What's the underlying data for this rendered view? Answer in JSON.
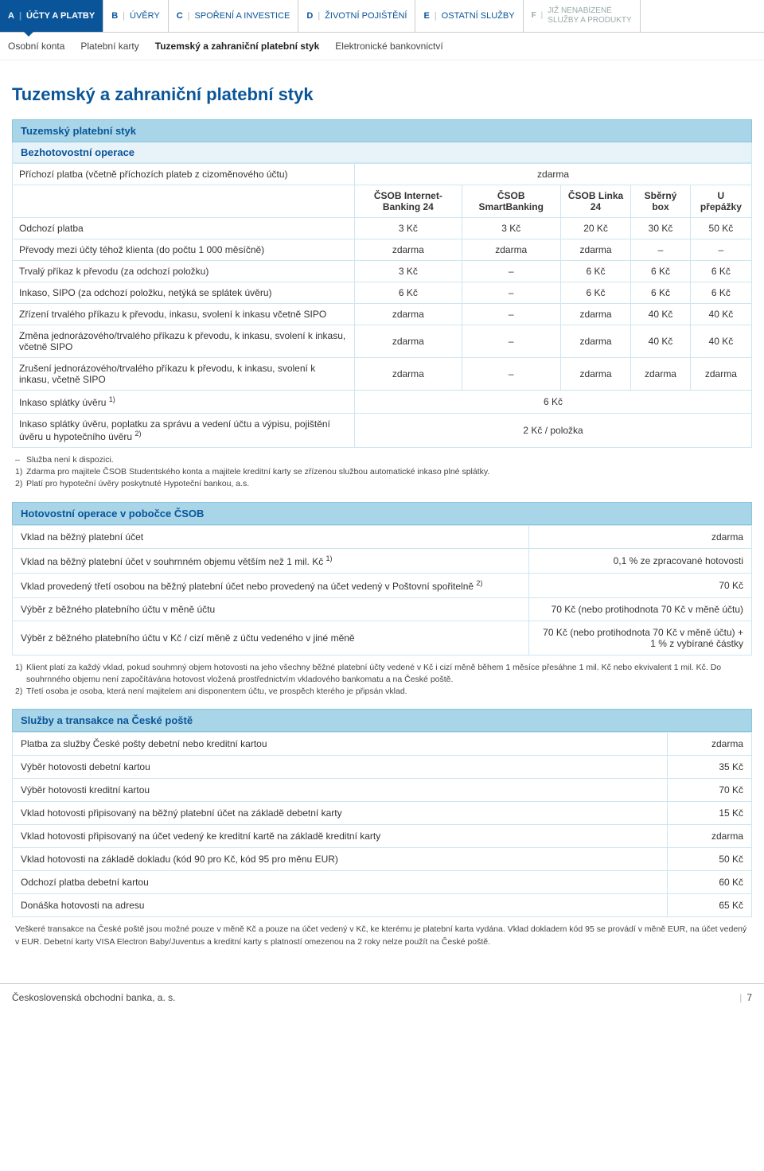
{
  "tabs": [
    {
      "letter": "A",
      "label": "ÚČTY A PLATBY",
      "active": true
    },
    {
      "letter": "B",
      "label": "ÚVĚRY"
    },
    {
      "letter": "C",
      "label": "SPOŘENÍ A INVESTICE"
    },
    {
      "letter": "D",
      "label": "ŽIVOTNÍ POJIŠTĚNÍ"
    },
    {
      "letter": "E",
      "label": "OSTATNÍ SLUŽBY"
    },
    {
      "letter": "F",
      "label": "JIŽ NENABÍZENÉ SLUŽBY A PRODUKTY",
      "last": true
    }
  ],
  "subtabs": [
    {
      "label": "Osobní konta"
    },
    {
      "label": "Platební karty"
    },
    {
      "label": "Tuzemský a zahraniční platební styk",
      "active": true
    },
    {
      "label": "Elektronické bankovnictví"
    }
  ],
  "page_title": "Tuzemský a zahraniční platební styk",
  "section1": {
    "header": "Tuzemský platební styk",
    "sub": "Bezhotovostní operace",
    "span_row": {
      "label": "Příchozí platba (včetně příchozích plateb z cizoměnového účtu)",
      "val": "zdarma"
    },
    "cols": [
      "",
      "ČSOB Internet-Banking 24",
      "ČSOB SmartBanking",
      "ČSOB Linka 24",
      "Sběrný box",
      "U přepážky"
    ],
    "rows": [
      [
        "Odchozí platba",
        "3 Kč",
        "3 Kč",
        "20 Kč",
        "30 Kč",
        "50 Kč"
      ],
      [
        "Převody mezi účty téhož klienta (do počtu 1 000 měsíčně)",
        "zdarma",
        "zdarma",
        "zdarma",
        "–",
        "–"
      ],
      [
        "Trvalý příkaz k převodu (za odchozí položku)",
        "3 Kč",
        "–",
        "6 Kč",
        "6 Kč",
        "6 Kč"
      ],
      [
        "Inkaso, SIPO (za odchozí položku, netýká se splátek úvěru)",
        "6 Kč",
        "–",
        "6 Kč",
        "6 Kč",
        "6 Kč"
      ],
      [
        "Zřízení trvalého příkazu k převodu, inkasu, svolení k inkasu včetně SIPO",
        "zdarma",
        "–",
        "zdarma",
        "40 Kč",
        "40 Kč"
      ],
      [
        "Změna jednorázového/trvalého příkazu k převodu, k inkasu, svolení k inkasu, včetně SIPO",
        "zdarma",
        "–",
        "zdarma",
        "40 Kč",
        "40 Kč"
      ],
      [
        "Zrušení jednorázového/trvalého příkazu k převodu, k inkasu, svolení k inkasu, včetně SIPO",
        "zdarma",
        "–",
        "zdarma",
        "zdarma",
        "zdarma"
      ]
    ],
    "tail": [
      {
        "label": "Inkaso splátky úvěru ",
        "sup": "1)",
        "val": "6 Kč"
      },
      {
        "label": "Inkaso splátky úvěru, poplatku za správu a vedení účtu a výpisu, pojištění úvěru u hypotečního úvěru ",
        "sup": "2)",
        "val": "2 Kč / položka"
      }
    ],
    "notes": [
      {
        "m": "–",
        "t": "Služba není k dispozici."
      },
      {
        "m": "1)",
        "t": "Zdarma pro majitele ČSOB Studentského konta a majitele kreditní karty se zřízenou službou automatické inkaso plné splátky."
      },
      {
        "m": "2)",
        "t": "Platí pro hypoteční úvěry poskytnuté Hypoteční bankou, a.s."
      }
    ]
  },
  "section2": {
    "header": "Hotovostní operace v pobočce ČSOB",
    "rows": [
      {
        "label": "Vklad na běžný platební účet",
        "val": "zdarma"
      },
      {
        "label": "Vklad na běžný platební účet v souhrnném objemu větším než 1 mil. Kč ",
        "sup": "1)",
        "val": "0,1 % ze zpracované hotovosti"
      },
      {
        "label": "Vklad provedený třetí osobou na běžný platební účet nebo provedený na účet vedený v Poštovní spořitelně ",
        "sup": "2)",
        "val": "70 Kč"
      },
      {
        "label": "Výběr z běžného platebního účtu v měně účtu",
        "val": "70 Kč (nebo protihodnota 70 Kč v měně účtu)"
      },
      {
        "label": "Výběr z běžného platebního účtu v Kč / cizí měně z účtu vedeného v jiné měně",
        "val": "70 Kč (nebo protihodnota 70 Kč v měně účtu) + 1 % z vybírané částky"
      }
    ],
    "notes": [
      {
        "m": "1)",
        "t": "Klient platí za každý vklad, pokud souhrnný objem hotovosti na jeho všechny běžné platební účty vedené v Kč i cizí měně během 1 měsíce přesáhne 1 mil. Kč nebo ekvivalent 1 mil. Kč. Do souhrnného objemu není započítávána hotovost vložená prostřednictvím vkladového bankomatu a na České poště."
      },
      {
        "m": "2)",
        "t": "Třetí osoba je osoba, která není majitelem ani disponentem účtu, ve prospěch kterého je připsán vklad."
      }
    ]
  },
  "section3": {
    "header": "Služby a transakce na České poště",
    "rows": [
      {
        "label": "Platba za služby České pošty debetní nebo kreditní kartou",
        "val": "zdarma"
      },
      {
        "label": "Výběr hotovosti debetní kartou",
        "val": "35 Kč"
      },
      {
        "label": "Výběr hotovosti kreditní kartou",
        "val": "70 Kč"
      },
      {
        "label": "Vklad hotovosti připisovaný na běžný platební účet na základě debetní karty",
        "val": "15 Kč"
      },
      {
        "label": "Vklad hotovosti připisovaný na účet vedený ke kreditní kartě na základě kreditní karty",
        "val": "zdarma"
      },
      {
        "label": "Vklad hotovosti na základě dokladu (kód 90 pro Kč, kód 95 pro měnu EUR)",
        "val": "50 Kč"
      },
      {
        "label": "Odchozí platba debetní kartou",
        "val": "60 Kč"
      },
      {
        "label": "Donáška hotovosti na adresu",
        "val": "65 Kč"
      }
    ],
    "foot": "Veškeré transakce na České poště jsou možné pouze v měně Kč a pouze na účet vedený v Kč, ke kterému je platební karta vydána. Vklad dokladem kód 95 se provádí v měně EUR, na účet vedený v EUR. Debetní karty VISA Electron Baby/Juventus a kreditní karty s platností omezenou na 2 roky nelze použít na České poště."
  },
  "footer": {
    "company": "Československá obchodní banka, a. s.",
    "page": "7"
  }
}
